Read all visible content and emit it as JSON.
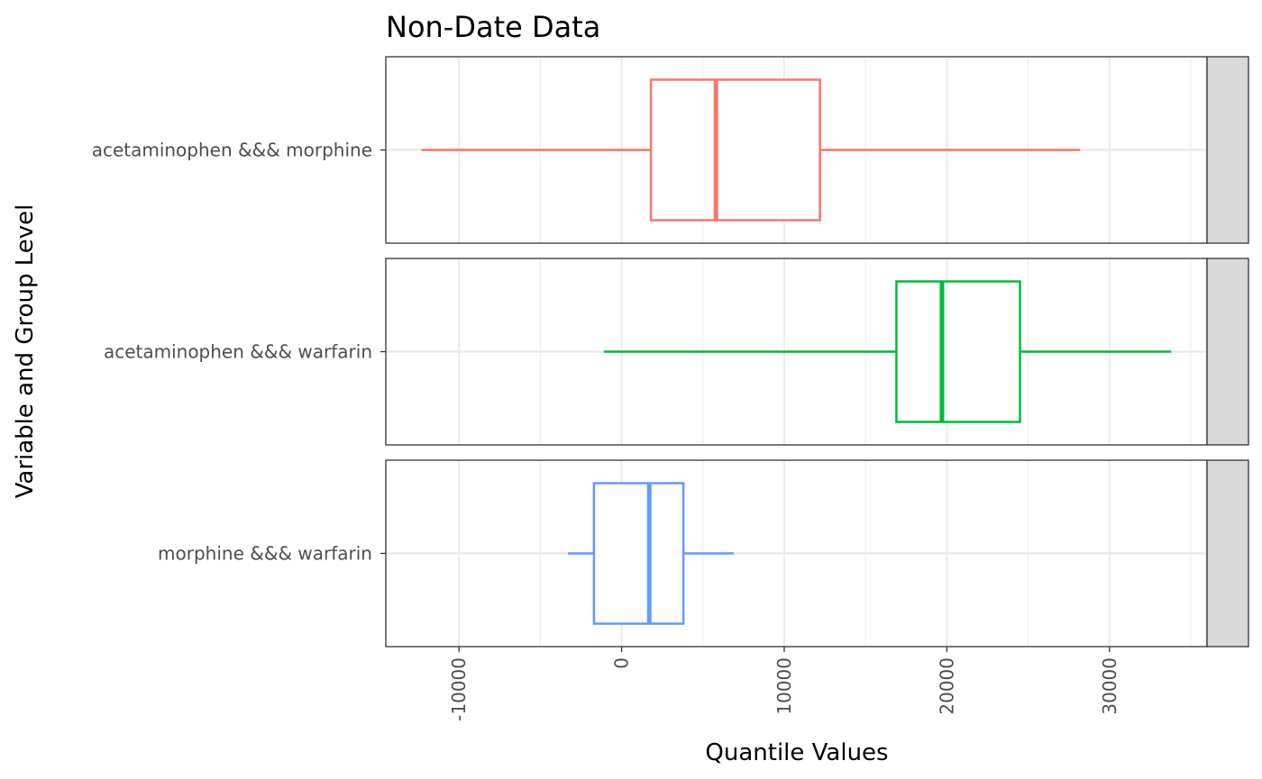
{
  "chart_data": {
    "type": "boxplot",
    "title": "Non-Date Data",
    "xlabel": "Quantile Values",
    "ylabel": "Variable and Group Level",
    "xlim": [
      -14500,
      36000
    ],
    "xticks": [
      -10000,
      0,
      10000,
      20000,
      30000
    ],
    "xtick_labels": [
      "-10000",
      "0",
      "10000",
      "20000",
      "30000"
    ],
    "grid": true,
    "legend": "none",
    "panels": [
      {
        "strip_label": "acetaminophen &&& morphine",
        "category": "acetaminophen &&& morphine",
        "color": "#F8766D",
        "stats": {
          "min": -12300,
          "q1": 1800,
          "median": 5800,
          "q3": 12200,
          "max": 28200
        }
      },
      {
        "strip_label": "acetaminophen &&& warfarin",
        "category": "acetaminophen &&& warfarin",
        "color": "#00BA38",
        "stats": {
          "min": -1100,
          "q1": 16900,
          "median": 19700,
          "q3": 24500,
          "max": 33800
        }
      },
      {
        "strip_label": "morphine &&& warfarin",
        "category": "morphine &&& warfarin",
        "color": "#619CFF",
        "stats": {
          "min": -3300,
          "q1": -1700,
          "median": 1700,
          "q3": 3800,
          "max": 6900
        }
      }
    ]
  }
}
